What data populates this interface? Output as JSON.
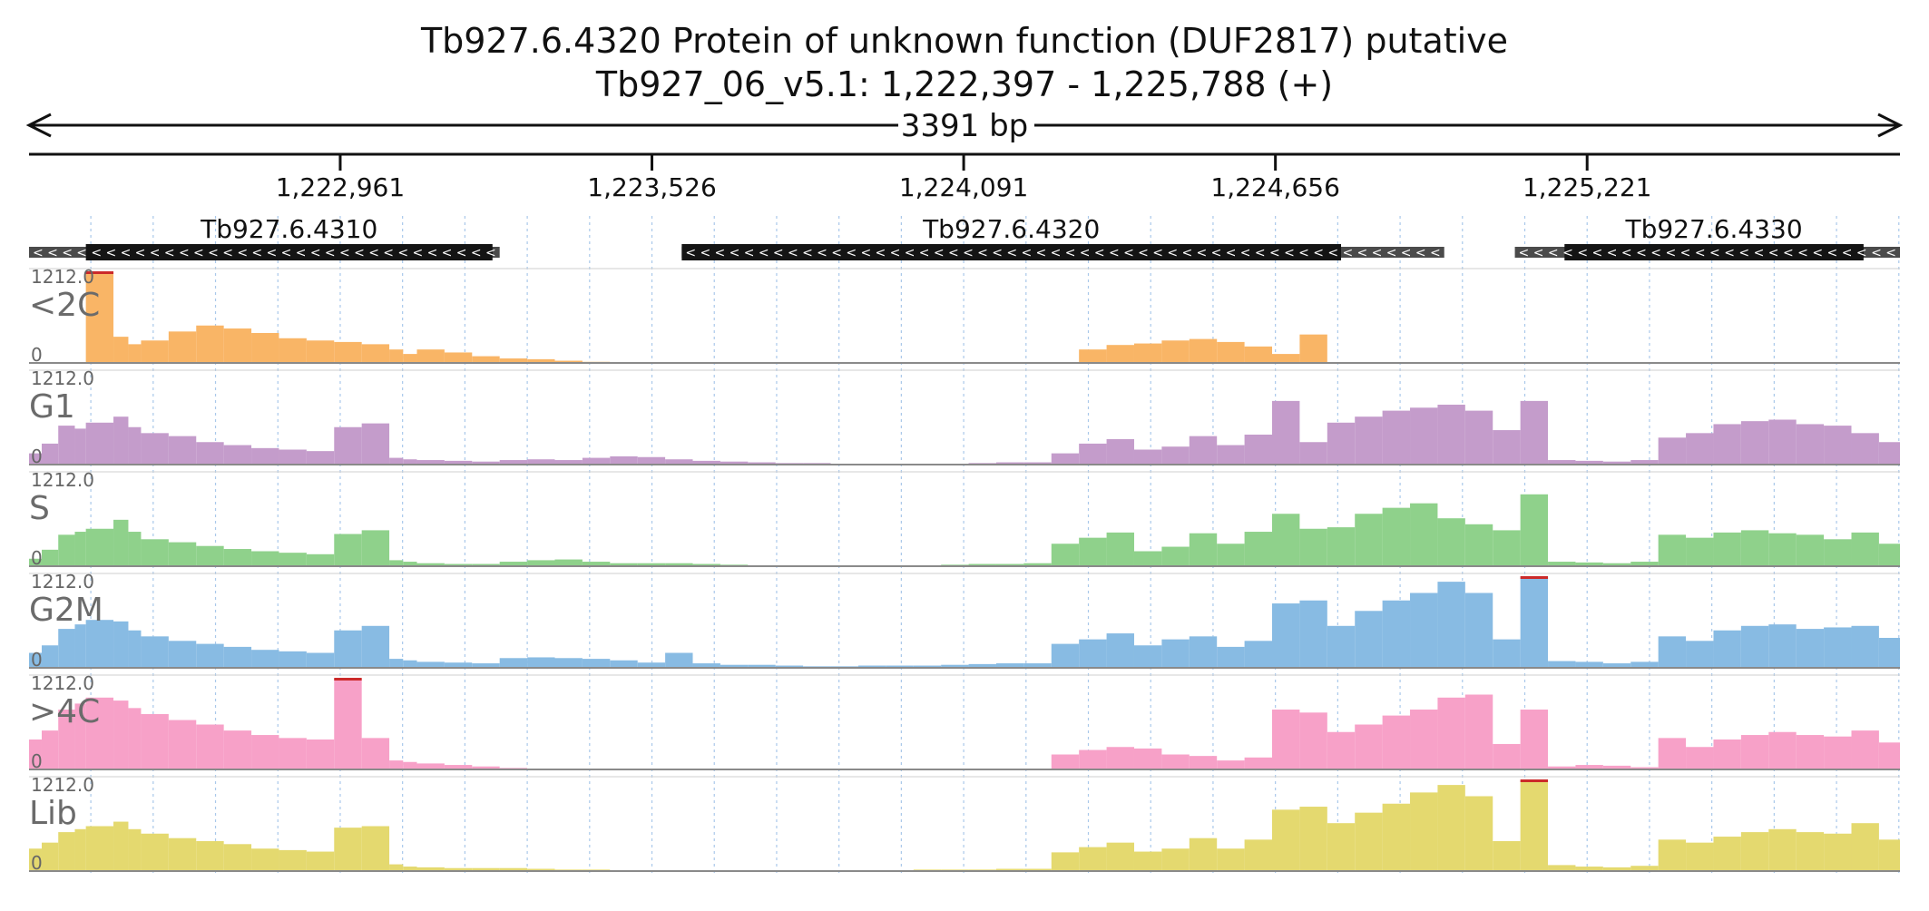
{
  "title": "Tb927.6.4320  Protein of unknown function (DUF2817)  putative",
  "subtitle": "Tb927_06_v5.1: 1,222,397 - 1,225,788 (+)",
  "span_label": "3391 bp",
  "chart_data": {
    "type": "area",
    "region": {
      "start": 1222397,
      "end": 1225788,
      "strand": "+"
    },
    "x_ticks": [
      {
        "value": 1222961,
        "label": "1,222,961"
      },
      {
        "value": 1223526,
        "label": "1,223,526"
      },
      {
        "value": 1224091,
        "label": "1,224,091"
      },
      {
        "value": 1224656,
        "label": "1,224,656"
      },
      {
        "value": 1225221,
        "label": "1,225,221"
      }
    ],
    "genes": [
      {
        "name": "Tb927.6.4310",
        "start": 1222397,
        "end": 1223250,
        "cds_start": 1222500,
        "cds_end": 1223237,
        "strand": "-"
      },
      {
        "name": "Tb927.6.4320",
        "start": 1223580,
        "end": 1224962,
        "cds_start": 1223580,
        "cds_end": 1224775,
        "strand": "-"
      },
      {
        "name": "Tb927.6.4330",
        "start": 1225090,
        "end": 1225788,
        "cds_start": 1225180,
        "cds_end": 1225722,
        "strand": "-"
      }
    ],
    "ylim": [
      0,
      1212.0
    ],
    "y_max_label": "1212.0",
    "y_min_label": "0",
    "bin_x": [
      1222397,
      1222420,
      1222450,
      1222480,
      1222500,
      1222550,
      1222577,
      1222600,
      1222650,
      1222700,
      1222750,
      1222800,
      1222850,
      1222900,
      1222950,
      1223000,
      1223050,
      1223075,
      1223100,
      1223150,
      1223200,
      1223250,
      1223300,
      1223350,
      1223400,
      1223450,
      1223500,
      1223550,
      1223600,
      1223650,
      1223700,
      1223750,
      1223800,
      1223850,
      1223900,
      1223950,
      1224000,
      1224050,
      1224100,
      1224150,
      1224200,
      1224250,
      1224300,
      1224350,
      1224400,
      1224450,
      1224500,
      1224550,
      1224600,
      1224650,
      1224700,
      1224750,
      1224800,
      1224850,
      1224900,
      1224950,
      1225000,
      1225050,
      1225100,
      1225150,
      1225200,
      1225250,
      1225300,
      1225350,
      1225400,
      1225450,
      1225500,
      1225550,
      1225600,
      1225650,
      1225700,
      1225750,
      1225788
    ],
    "series": [
      {
        "name": "<2C",
        "color": "#f9b566",
        "values": [
          0,
          0,
          0,
          0,
          1212,
          350,
          250,
          300,
          420,
          500,
          460,
          400,
          330,
          300,
          280,
          250,
          180,
          120,
          180,
          140,
          90,
          60,
          50,
          30,
          15,
          5,
          0,
          0,
          0,
          0,
          0,
          0,
          0,
          0,
          0,
          0,
          0,
          0,
          0,
          0,
          0,
          0,
          180,
          240,
          260,
          300,
          320,
          280,
          220,
          120,
          380,
          0,
          0,
          0,
          0,
          0,
          0,
          0,
          0,
          0,
          0,
          0,
          0,
          0,
          0,
          0,
          0,
          0,
          0,
          0,
          0,
          0,
          0
        ]
      },
      {
        "name": "G1",
        "color": "#c49ccb",
        "values": [
          150,
          280,
          520,
          480,
          560,
          640,
          500,
          420,
          380,
          300,
          260,
          220,
          200,
          180,
          500,
          550,
          90,
          70,
          60,
          50,
          40,
          60,
          70,
          60,
          90,
          110,
          100,
          70,
          50,
          40,
          30,
          20,
          20,
          10,
          10,
          5,
          10,
          5,
          20,
          30,
          30,
          150,
          280,
          340,
          200,
          240,
          380,
          260,
          400,
          850,
          300,
          560,
          640,
          720,
          760,
          800,
          720,
          460,
          850,
          60,
          50,
          40,
          60,
          360,
          420,
          540,
          580,
          600,
          540,
          520,
          420,
          300,
          440
        ]
      },
      {
        "name": "S",
        "color": "#8fd18b",
        "values": [
          100,
          220,
          420,
          460,
          500,
          620,
          460,
          360,
          320,
          270,
          230,
          200,
          180,
          160,
          430,
          480,
          80,
          60,
          40,
          30,
          30,
          60,
          80,
          90,
          60,
          40,
          40,
          40,
          30,
          20,
          10,
          10,
          5,
          5,
          5,
          5,
          10,
          20,
          30,
          30,
          40,
          300,
          380,
          450,
          200,
          260,
          440,
          300,
          460,
          700,
          500,
          520,
          700,
          780,
          840,
          640,
          560,
          480,
          960,
          60,
          50,
          40,
          60,
          420,
          380,
          450,
          480,
          440,
          420,
          360,
          450,
          300,
          620
        ]
      },
      {
        "name": "G2M",
        "color": "#88bbe3",
        "values": [
          200,
          300,
          520,
          580,
          640,
          620,
          500,
          420,
          360,
          320,
          280,
          240,
          220,
          200,
          500,
          560,
          120,
          100,
          80,
          70,
          60,
          130,
          140,
          130,
          120,
          100,
          70,
          200,
          60,
          40,
          40,
          30,
          20,
          20,
          30,
          30,
          30,
          40,
          50,
          60,
          60,
          320,
          380,
          460,
          300,
          380,
          420,
          280,
          360,
          860,
          900,
          560,
          760,
          900,
          1000,
          1150,
          1000,
          380,
          1212,
          90,
          80,
          60,
          80,
          420,
          360,
          500,
          560,
          580,
          520,
          540,
          560,
          400,
          520
        ]
      },
      {
        "name": ">4C",
        "color": "#f7a1c8",
        "values": [
          400,
          520,
          800,
          880,
          960,
          920,
          820,
          740,
          660,
          600,
          520,
          460,
          420,
          400,
          1212,
          420,
          120,
          100,
          80,
          60,
          40,
          20,
          10,
          5,
          0,
          0,
          0,
          0,
          0,
          0,
          0,
          0,
          0,
          0,
          0,
          0,
          0,
          0,
          0,
          0,
          0,
          200,
          260,
          300,
          280,
          200,
          180,
          120,
          160,
          800,
          760,
          500,
          600,
          720,
          800,
          960,
          1000,
          340,
          800,
          40,
          60,
          50,
          30,
          420,
          300,
          400,
          460,
          500,
          460,
          440,
          520,
          360,
          300
        ]
      },
      {
        "name": "Lib",
        "color": "#e4d96f",
        "values": [
          300,
          380,
          520,
          560,
          600,
          660,
          560,
          500,
          440,
          400,
          360,
          300,
          280,
          260,
          580,
          600,
          90,
          60,
          50,
          40,
          40,
          40,
          30,
          20,
          20,
          10,
          10,
          10,
          10,
          5,
          5,
          5,
          5,
          5,
          10,
          10,
          20,
          20,
          20,
          30,
          30,
          250,
          320,
          380,
          260,
          300,
          440,
          300,
          420,
          820,
          860,
          640,
          780,
          900,
          1050,
          1150,
          1000,
          400,
          1212,
          80,
          60,
          50,
          70,
          420,
          380,
          460,
          520,
          560,
          520,
          500,
          640,
          420,
          480
        ]
      }
    ]
  }
}
